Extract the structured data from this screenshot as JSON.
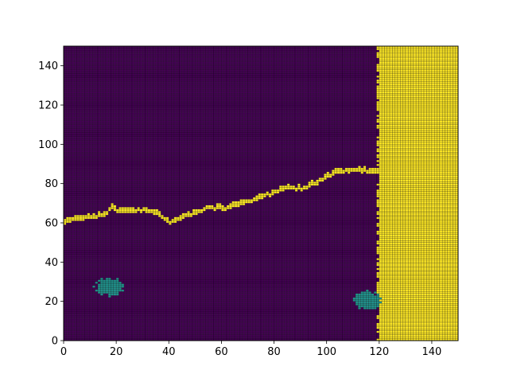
{
  "chart_data": {
    "type": "heatmap",
    "title": "",
    "xlabel": "",
    "ylabel": "",
    "xlim": [
      0,
      150
    ],
    "ylim": [
      0,
      150
    ],
    "grid_size": [
      150,
      150
    ],
    "cell_edges": true,
    "colormap": "viridis",
    "colors": {
      "background": "#440154",
      "cluster": "#21918c",
      "feature": "#fde725",
      "cell_edge": "#000000"
    },
    "x_ticks": [
      "0",
      "20",
      "40",
      "60",
      "80",
      "100",
      "120",
      "140"
    ],
    "y_ticks": [
      "0",
      "20",
      "40",
      "60",
      "80",
      "100",
      "120",
      "140"
    ],
    "regions": [
      {
        "label": "ridge",
        "value": "feature",
        "description_points": [
          [
            0,
            60
          ],
          [
            5,
            62
          ],
          [
            10,
            63
          ],
          [
            15,
            64
          ],
          [
            18,
            68
          ],
          [
            20,
            66
          ],
          [
            25,
            66
          ],
          [
            30,
            67
          ],
          [
            35,
            65
          ],
          [
            38,
            62
          ],
          [
            40,
            60
          ],
          [
            45,
            63
          ],
          [
            50,
            65
          ],
          [
            55,
            68
          ],
          [
            60,
            67
          ],
          [
            65,
            69
          ],
          [
            70,
            71
          ],
          [
            75,
            73
          ],
          [
            80,
            76
          ],
          [
            85,
            78
          ],
          [
            90,
            77
          ],
          [
            95,
            80
          ],
          [
            100,
            84
          ],
          [
            105,
            86
          ],
          [
            110,
            87
          ],
          [
            115,
            86
          ],
          [
            120,
            86
          ]
        ]
      },
      {
        "label": "block",
        "value": "feature",
        "x_range": [
          120,
          150
        ],
        "y_range": [
          0,
          150
        ]
      },
      {
        "label": "cluster-a",
        "value": "cluster",
        "center": [
          17,
          27
        ],
        "radius": 5
      },
      {
        "label": "cluster-b",
        "value": "cluster",
        "center": [
          115,
          20
        ],
        "radius": 5
      }
    ]
  }
}
